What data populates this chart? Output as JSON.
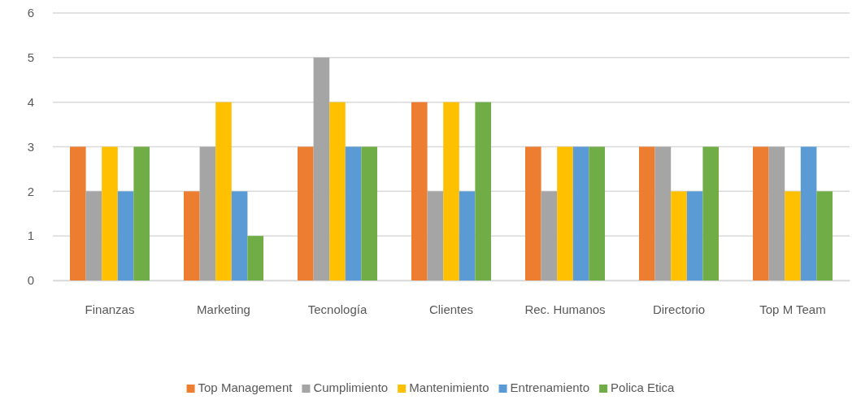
{
  "chart_data": {
    "type": "bar",
    "categories": [
      "Finanzas",
      "Marketing",
      "Tecnología",
      "Clientes",
      "Rec. Humanos",
      "Directorio",
      "Top M Team"
    ],
    "series": [
      {
        "name": "Top Management",
        "color": "#ed7d31",
        "values": [
          3,
          2,
          3,
          4,
          3,
          3,
          3
        ]
      },
      {
        "name": "Cumplimiento",
        "color": "#a5a5a5",
        "values": [
          2,
          3,
          5,
          2,
          2,
          3,
          3
        ]
      },
      {
        "name": "Mantenimiento",
        "color": "#ffc000",
        "values": [
          3,
          4,
          4,
          4,
          3,
          2,
          2
        ]
      },
      {
        "name": "Entrenamiento",
        "color": "#5b9bd5",
        "values": [
          2,
          2,
          3,
          2,
          3,
          2,
          3
        ]
      },
      {
        "name": "Polica Etica",
        "color": "#70ad47",
        "values": [
          3,
          1,
          3,
          4,
          3,
          3,
          2
        ]
      }
    ],
    "ylim": [
      0,
      6
    ],
    "yticks": [
      0,
      1,
      2,
      3,
      4,
      5,
      6
    ],
    "grid": "y",
    "legend": "bottom"
  }
}
